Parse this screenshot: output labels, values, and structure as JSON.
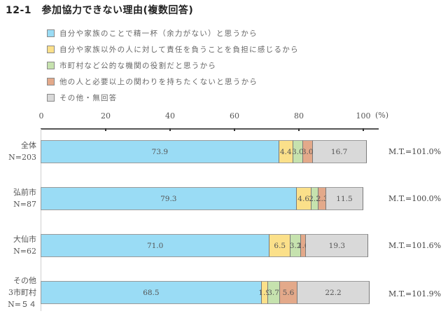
{
  "title": "12-1　参加協力できない理由(複数回答)",
  "legend": [
    {
      "label": "自分や家族のことで精一杯（余力がない）と思うから",
      "color": "#9adcf5"
    },
    {
      "label": "自分や家族以外の人に対して責任を負うことを負担に感じるから",
      "color": "#fbe08a"
    },
    {
      "label": "市町村など公的な機関の役割だと思うから",
      "color": "#c6e2ae"
    },
    {
      "label": "他の人と必要以上の関わりを持ちたくないと思うから",
      "color": "#e3a98a"
    },
    {
      "label": "その他・無回答",
      "color": "#d9d9d9"
    }
  ],
  "axis": {
    "ticks": [
      "0",
      "20",
      "40",
      "60",
      "80",
      "100"
    ],
    "unit": "(%)"
  },
  "rows": [
    {
      "label_lines": [
        "全体",
        "N=203"
      ],
      "mt": "M.T.=101.0%",
      "values": [
        73.9,
        4.4,
        3.0,
        3.0,
        16.7
      ],
      "labels": [
        "73.9",
        "4.4",
        "3.0",
        "3.0",
        "16.7"
      ]
    },
    {
      "label_lines": [
        "弘前市",
        "N=87"
      ],
      "mt": "M.T.=100.0%",
      "values": [
        79.3,
        4.6,
        2.3,
        2.3,
        11.5
      ],
      "labels": [
        "79.3",
        "4.6",
        "2.3",
        "2.3",
        "11.5"
      ]
    },
    {
      "label_lines": [
        "大仙市",
        "N=62"
      ],
      "mt": "M.T.=101.6%",
      "values": [
        71.0,
        6.5,
        3.2,
        1.6,
        19.3
      ],
      "labels": [
        "71.0",
        "6.5",
        "3.2",
        "1.6",
        "19.3"
      ]
    },
    {
      "label_lines": [
        "その他",
        "3市町村",
        "N=５４"
      ],
      "mt": "M.T.=101.9%",
      "values": [
        68.5,
        1.9,
        3.7,
        5.6,
        22.2
      ],
      "labels": [
        "68.5",
        "1.9",
        "3.7",
        "5.6",
        "22.2"
      ]
    }
  ],
  "chart_data": {
    "type": "bar",
    "orientation": "horizontal",
    "stacked": true,
    "title": "12-1 参加協力できない理由(複数回答)",
    "xlabel": "(%)",
    "ylabel": "",
    "xlim": [
      0,
      100
    ],
    "xticks": [
      0,
      20,
      40,
      60,
      80,
      100
    ],
    "grid": false,
    "legend_position": "top",
    "categories": [
      "全体 N=203",
      "弘前市 N=87",
      "大仙市 N=62",
      "その他3市町村 N=54"
    ],
    "series": [
      {
        "name": "自分や家族のことで精一杯（余力がない）と思うから",
        "values": [
          73.9,
          79.3,
          71.0,
          68.5
        ]
      },
      {
        "name": "自分や家族以外の人に対して責任を負うことを負担に感じるから",
        "values": [
          4.4,
          4.6,
          6.5,
          1.9
        ]
      },
      {
        "name": "市町村など公的な機関の役割だと思うから",
        "values": [
          3.0,
          2.3,
          3.2,
          3.7
        ]
      },
      {
        "name": "他の人と必要以上の関わりを持ちたくないと思うから",
        "values": [
          3.0,
          2.3,
          1.6,
          5.6
        ]
      },
      {
        "name": "その他・無回答",
        "values": [
          16.7,
          11.5,
          19.3,
          22.2
        ]
      }
    ],
    "annotations": [
      "M.T.=101.0%",
      "M.T.=100.0%",
      "M.T.=101.6%",
      "M.T.=101.9%"
    ]
  }
}
